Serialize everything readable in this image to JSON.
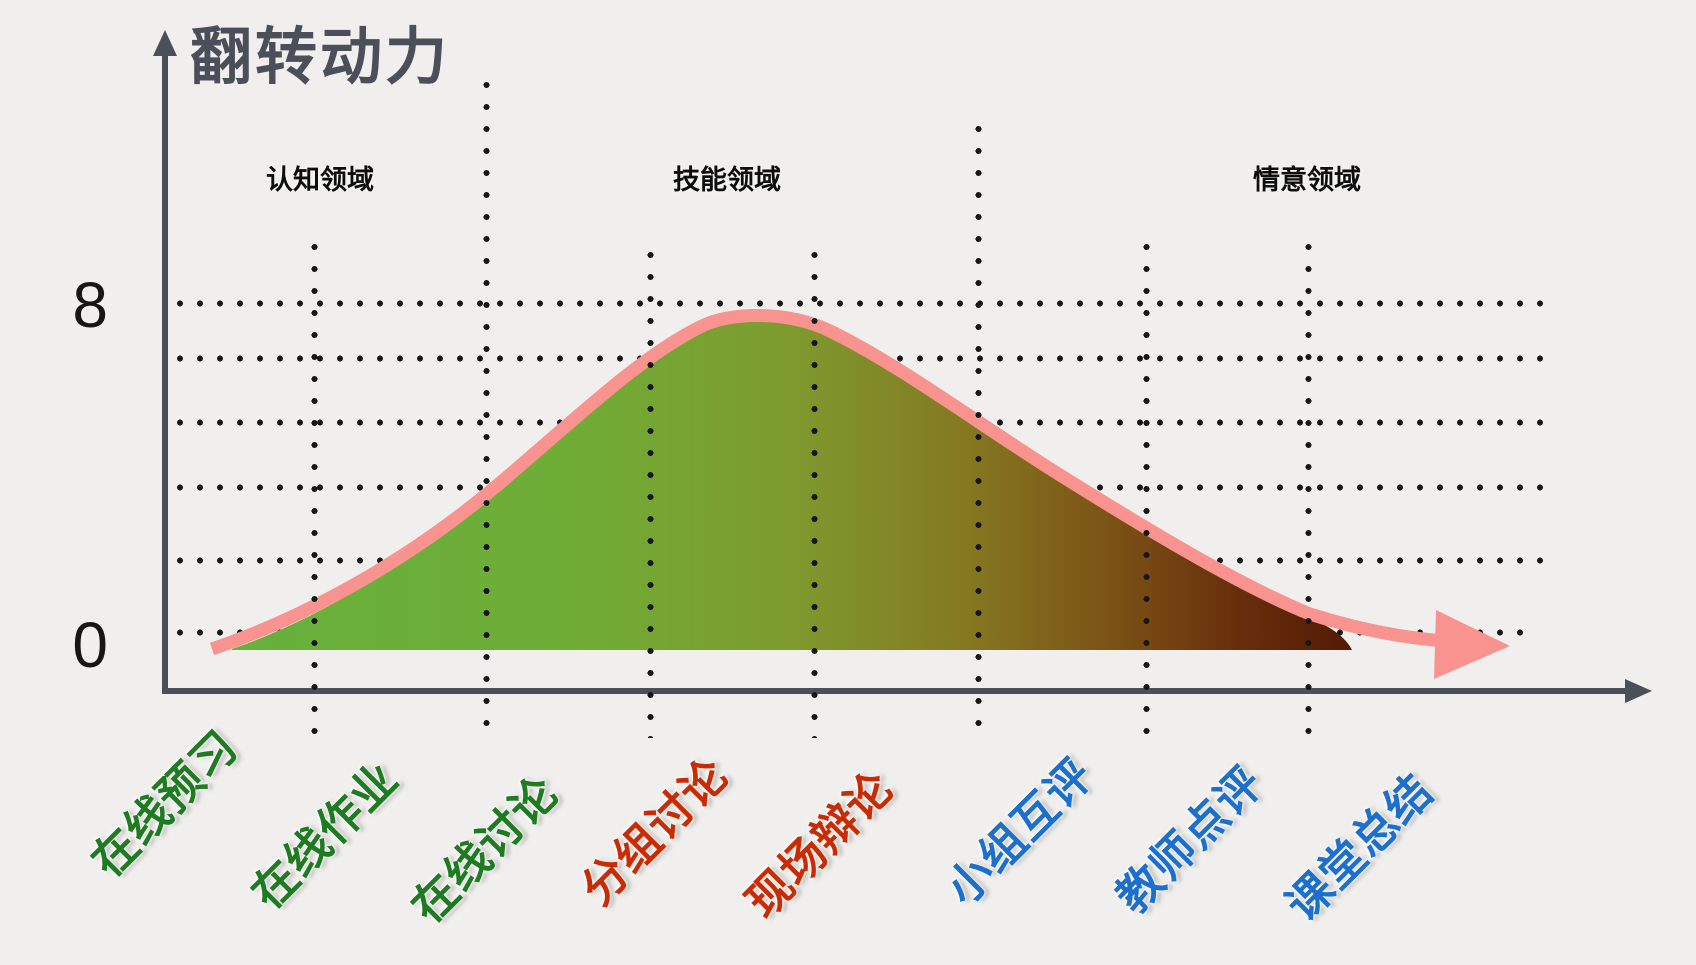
{
  "title": "翻转动力",
  "y_axis": {
    "labels": [
      "8",
      "0"
    ]
  },
  "regions": [
    {
      "label": "认知领域"
    },
    {
      "label": "技能领域"
    },
    {
      "label": "情意领域"
    }
  ],
  "x_labels": [
    {
      "label": "在线预习",
      "color": "#1e7b21"
    },
    {
      "label": "在线作业",
      "color": "#1e7b21"
    },
    {
      "label": "在线讨论",
      "color": "#1e7b21"
    },
    {
      "label": "分组讨论",
      "color": "#c82c04"
    },
    {
      "label": "现场辩论",
      "color": "#c82c04"
    },
    {
      "label": "小组互评",
      "color": "#1d6fce"
    },
    {
      "label": "教师点评",
      "color": "#1d6fce"
    },
    {
      "label": "课堂总结",
      "color": "#1d6fce"
    }
  ],
  "colors": {
    "background": "#f0efed",
    "axis": "#4a505a",
    "grid_dots": "#171717",
    "curve_stroke": "#f8938f",
    "fill_gradient_left": "#67b13d",
    "fill_gradient_mid": "#7e9a2e",
    "fill_gradient_right": "#531a05",
    "title_text": "#4a4f59",
    "green_label": "#1e7b21",
    "red_label": "#c82c04",
    "blue_label": "#1d6fce"
  },
  "chart_data": {
    "type": "area",
    "title": "翻转动力",
    "ylabel": "翻转动力",
    "categories": [
      "在线预习",
      "在线作业",
      "在线讨论",
      "分组讨论",
      "现场辩论",
      "小组互评",
      "教师点评",
      "课堂总结"
    ],
    "values": [
      0,
      0.9,
      3.4,
      6.9,
      7.3,
      4.6,
      1.9,
      0.3
    ],
    "peak_value": 8,
    "peak_between": [
      "分组讨论",
      "现场辩论"
    ],
    "ylim": [
      0,
      8
    ],
    "y_ticks": [
      0,
      8
    ],
    "grid": "dotted",
    "curve_shape": "bell",
    "legend_position": "none",
    "regions": [
      {
        "label": "认知领域",
        "categories": [
          "在线预习",
          "在线作业",
          "在线讨论"
        ],
        "label_color": "#1e7b21"
      },
      {
        "label": "技能领域",
        "categories": [
          "分组讨论",
          "现场辩论"
        ],
        "label_color": "#c82c04"
      },
      {
        "label": "情意领域",
        "categories": [
          "小组互评",
          "教师点评",
          "课堂总结"
        ],
        "label_color": "#1d6fce"
      }
    ]
  }
}
